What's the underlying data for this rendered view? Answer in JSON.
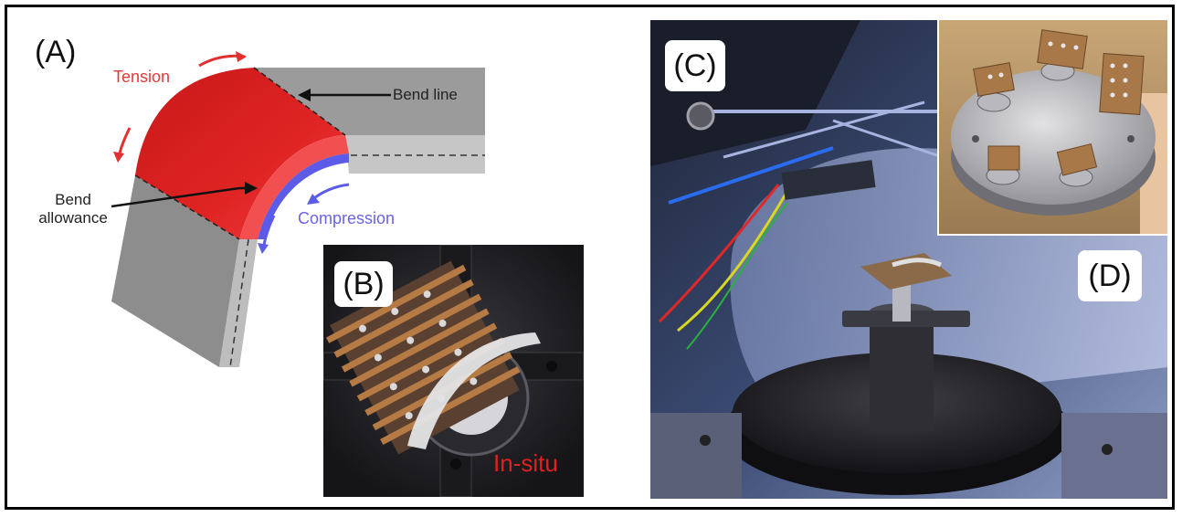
{
  "panel_a": {
    "label": "(A)",
    "tension": "Tension",
    "bend_line": "Bend line",
    "bend_allowance_1": "Bend",
    "bend_allowance_2": "allowance",
    "compression": "Compression"
  },
  "panel_b": {
    "label": "(B)",
    "caption": "In-situ"
  },
  "panel_c": {
    "label": "(C)"
  },
  "panel_d": {
    "label": "(D)"
  },
  "colors": {
    "tension": "#e23b3b",
    "compression": "#6c63e8",
    "metal": "#8c8c8c",
    "insitu_text": "#e02020"
  }
}
